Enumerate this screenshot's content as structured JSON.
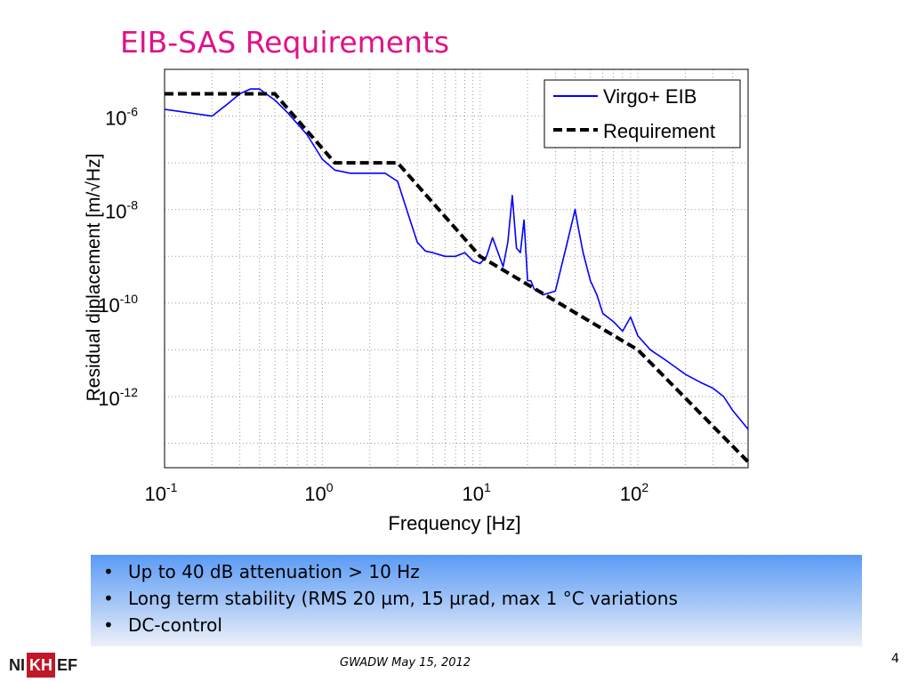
{
  "slide": {
    "title": "EIB-SAS Requirements",
    "bullets": [
      "Up to 40 dB attenuation > 10 Hz",
      "Long term stability (RMS 20 µm, 15 µrad,  max 1 °C variations",
      "DC-control"
    ],
    "footer": "GWADW May 15, 2012",
    "page_number": "4",
    "logo": [
      "NI",
      "KH",
      "EF"
    ]
  },
  "chart_data": {
    "type": "line",
    "xlabel": "Frequency [Hz]",
    "ylabel": "Residual diplacement [m/√Hz]",
    "x_scale": "log",
    "y_scale": "log",
    "xlim": [
      0.1,
      500
    ],
    "ylim": [
      3e-14,
      1e-05
    ],
    "x_ticks": [
      {
        "label_base": "10",
        "label_exp": "-1"
      },
      {
        "label_base": "10",
        "label_exp": "0"
      },
      {
        "label_base": "10",
        "label_exp": "1"
      },
      {
        "label_base": "10",
        "label_exp": "2"
      }
    ],
    "y_ticks": [
      {
        "label_base": "10",
        "label_exp": "-6"
      },
      {
        "label_base": "10",
        "label_exp": "-8"
      },
      {
        "label_base": "10",
        "label_exp": "-10"
      },
      {
        "label_base": "10",
        "label_exp": "-12"
      }
    ],
    "grid": "dotted",
    "legend_position": "top-right",
    "series": [
      {
        "name": "Virgo+ EIB",
        "color": "#0000ff",
        "style": "solid",
        "x": [
          0.1,
          0.2,
          0.25,
          0.3,
          0.35,
          0.4,
          0.5,
          0.6,
          0.8,
          1.0,
          1.2,
          1.5,
          2.0,
          2.5,
          3.0,
          3.5,
          4.0,
          4.5,
          5.0,
          6.0,
          7.0,
          8.0,
          9.0,
          10.0,
          11.0,
          12.0,
          13.0,
          14.0,
          15.0,
          16.0,
          17.0,
          18.0,
          19.0,
          20.0,
          21.0,
          22.0,
          25.0,
          30.0,
          35.0,
          40.0,
          42.0,
          45.0,
          50.0,
          55.0,
          60.0,
          70.0,
          80.0,
          90.0,
          100.0,
          120.0,
          150.0,
          200.0,
          250.0,
          300.0,
          350.0,
          400.0,
          500.0
        ],
        "y": [
          1.4e-06,
          1e-06,
          1.8e-06,
          3e-06,
          3.8e-06,
          3.8e-06,
          2.2e-06,
          1.2e-06,
          4e-07,
          1.2e-07,
          7e-08,
          6e-08,
          6e-08,
          6e-08,
          4e-08,
          8e-09,
          2e-09,
          1.3e-09,
          1.2e-09,
          1e-09,
          1e-09,
          1.2e-09,
          8e-10,
          7e-10,
          1e-09,
          2.5e-09,
          1.2e-09,
          6e-10,
          2e-09,
          2e-08,
          1.5e-09,
          1.2e-09,
          6e-09,
          3e-10,
          3e-10,
          2e-10,
          1.5e-10,
          1.8e-10,
          1.5e-09,
          1e-08,
          4e-09,
          1.2e-09,
          3e-10,
          1.5e-10,
          6e-11,
          4e-11,
          2.5e-11,
          5e-11,
          2e-11,
          1e-11,
          6e-12,
          3e-12,
          2e-12,
          1.5e-12,
          1e-12,
          5e-13,
          2e-13
        ]
      },
      {
        "name": "Requirement",
        "color": "#000000",
        "style": "dashed",
        "x": [
          0.1,
          0.5,
          1.2,
          3.0,
          10.0,
          100.0,
          500.0
        ],
        "y": [
          3e-06,
          3e-06,
          1e-07,
          1e-07,
          1e-09,
          1e-11,
          4e-14
        ]
      }
    ]
  }
}
